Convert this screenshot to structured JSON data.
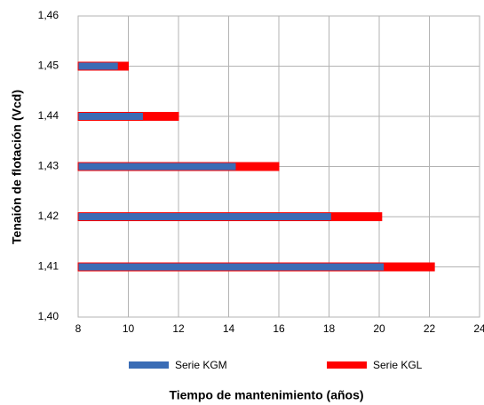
{
  "chart_data": {
    "type": "bar",
    "orientation": "horizontal",
    "xlabel": "Tiempo de mantenimiento (años)",
    "ylabel": "Tenaión de flotación (Vcd)",
    "y": [
      1.41,
      1.42,
      1.43,
      1.44,
      1.45
    ],
    "series": [
      {
        "name": "Serie KGL",
        "color": "#ff0000",
        "values": [
          22.2,
          20.1,
          16.0,
          12.0,
          10.0
        ]
      },
      {
        "name": "Serie KGM",
        "color": "#3a6cb5",
        "values": [
          20.2,
          18.1,
          14.3,
          10.6,
          9.6
        ]
      }
    ],
    "xlim": [
      8,
      24
    ],
    "xticks": [
      8,
      10,
      12,
      14,
      16,
      18,
      20,
      22,
      24
    ],
    "ylim": [
      1.4,
      1.46
    ],
    "yticks": [
      {
        "value": 1.4,
        "label": "1,40"
      },
      {
        "value": 1.41,
        "label": "1,41"
      },
      {
        "value": 1.42,
        "label": "1,42"
      },
      {
        "value": 1.43,
        "label": "1,43"
      },
      {
        "value": 1.44,
        "label": "1,44"
      },
      {
        "value": 1.45,
        "label": "1,45"
      },
      {
        "value": 1.46,
        "label": "1,46"
      }
    ],
    "grid": true,
    "legend": "bottom"
  }
}
